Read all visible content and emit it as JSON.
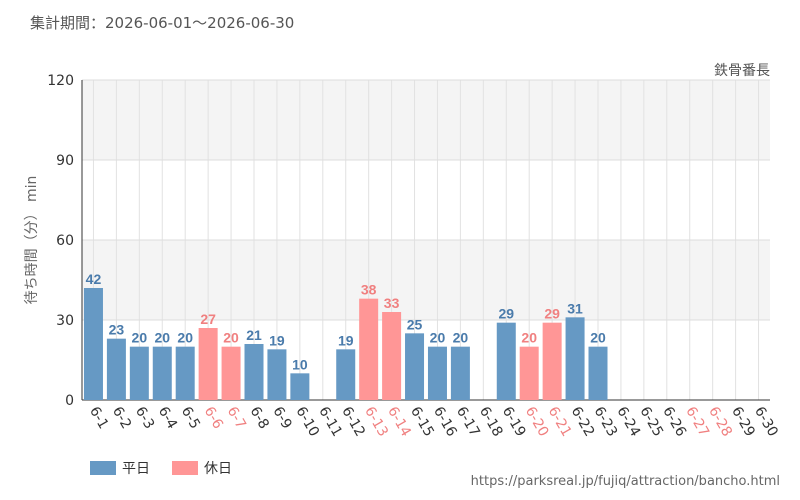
{
  "header": {
    "period": "集計期間：2026-06-01～2026-06-30",
    "attraction": "鉄骨番長"
  },
  "legend": {
    "weekday": "平日",
    "holiday": "休日"
  },
  "footer": {
    "source_url": "https://parksreal.jp/fujiq/attraction/bancho.html"
  },
  "colors": {
    "weekday": "#6699c4",
    "holiday": "#ff9696",
    "weekday_label": "#4a7bab",
    "holiday_label": "#f08080",
    "axis_text": "#333333"
  },
  "chart_data": {
    "type": "bar",
    "ylabel": "待ち時間（分） min",
    "ylim": [
      0,
      120
    ],
    "yticks": [
      0,
      30,
      60,
      90,
      120
    ],
    "categories": [
      "6-1",
      "6-2",
      "6-3",
      "6-4",
      "6-5",
      "6-6",
      "6-7",
      "6-8",
      "6-9",
      "6-10",
      "6-11",
      "6-12",
      "6-13",
      "6-14",
      "6-15",
      "6-16",
      "6-17",
      "6-18",
      "6-19",
      "6-20",
      "6-21",
      "6-22",
      "6-23",
      "6-24",
      "6-25",
      "6-26",
      "6-27",
      "6-28",
      "6-29",
      "6-30"
    ],
    "holiday": [
      false,
      false,
      false,
      false,
      false,
      true,
      true,
      false,
      false,
      false,
      false,
      false,
      true,
      true,
      false,
      false,
      false,
      false,
      false,
      true,
      true,
      false,
      false,
      false,
      false,
      false,
      true,
      true,
      false,
      false
    ],
    "values": [
      42,
      23,
      20,
      20,
      20,
      27,
      20,
      21,
      19,
      10,
      null,
      19,
      38,
      33,
      25,
      20,
      20,
      null,
      29,
      20,
      29,
      31,
      20,
      null,
      null,
      null,
      null,
      null,
      null,
      null
    ],
    "series": [
      {
        "name": "平日"
      },
      {
        "name": "休日"
      }
    ],
    "grid": true,
    "legend_position": "bottom-left"
  }
}
